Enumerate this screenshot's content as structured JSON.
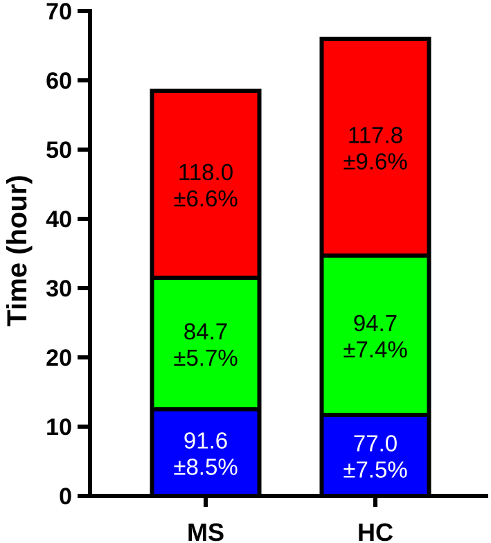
{
  "chart_data": {
    "type": "bar",
    "stacked": true,
    "ylabel": "Time (hour)",
    "ylim": [
      0,
      70
    ],
    "yticks": [
      0,
      10,
      20,
      30,
      40,
      50,
      60,
      70
    ],
    "categories": [
      "MS",
      "HC"
    ],
    "series": [
      {
        "color": "#0000ff",
        "text_color": "#ffffff",
        "values": [
          12.5,
          11.7
        ],
        "labels": [
          {
            "line1": "91.6",
            "line2": "±8.5%"
          },
          {
            "line1": "77.0",
            "line2": "±7.5%"
          }
        ]
      },
      {
        "color": "#00ff00",
        "text_color": "#000000",
        "values": [
          19.0,
          23.0
        ],
        "labels": [
          {
            "line1": "84.7",
            "line2": "±5.7%"
          },
          {
            "line1": "94.7",
            "line2": "±7.4%"
          }
        ]
      },
      {
        "color": "#ff0000",
        "text_color": "#000000",
        "values": [
          27.0,
          31.3
        ],
        "labels": [
          {
            "line1": "118.0",
            "line2": "±6.6%"
          },
          {
            "line1": "117.8",
            "line2": "±9.6%"
          }
        ]
      }
    ],
    "grid": false,
    "legend": "none"
  }
}
